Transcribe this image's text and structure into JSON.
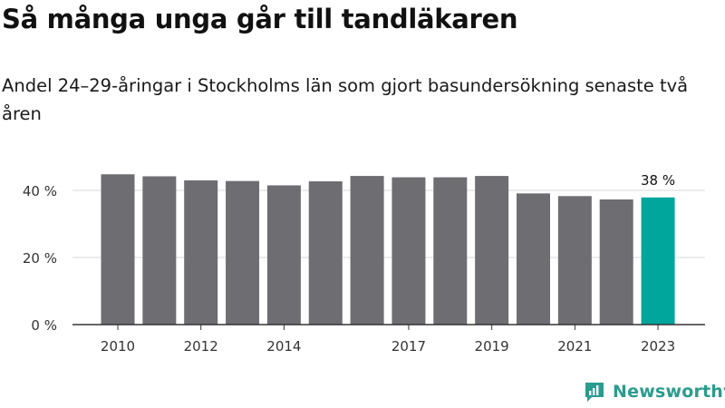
{
  "title": "Så många unga går till tandläkaren",
  "subtitle": "Andel 24–29-åringar i Stockholms län som gjort basundersökning senaste två åren",
  "chart_data": {
    "type": "bar",
    "categories": [
      "2010",
      "2011",
      "2012",
      "2013",
      "2014",
      "2015",
      "2016",
      "2017",
      "2018",
      "2019",
      "2020",
      "2021",
      "2022",
      "2023"
    ],
    "values": [
      44.8,
      44.2,
      43.0,
      42.8,
      41.5,
      42.7,
      44.3,
      43.9,
      43.9,
      44.3,
      39.1,
      38.3,
      37.3,
      37.9
    ],
    "tick_labels": [
      "2010",
      "2012",
      "2014",
      "2017",
      "2019",
      "2021",
      "2023"
    ],
    "ylim": [
      0,
      50
    ],
    "y_ticks": [
      0,
      20,
      40
    ],
    "y_tick_labels": [
      "0 %",
      "20 %",
      "40 %"
    ],
    "annotation": {
      "category": "2023",
      "text": "38 %"
    },
    "highlight_category": "2023",
    "bar_color": "#6e6d72",
    "highlight_color": "#00a59c",
    "grid": true,
    "legend": "none"
  },
  "brand": {
    "name": "Newsworthy",
    "color": "#2a9c8f",
    "icon": "newsworthy-logo-icon"
  }
}
